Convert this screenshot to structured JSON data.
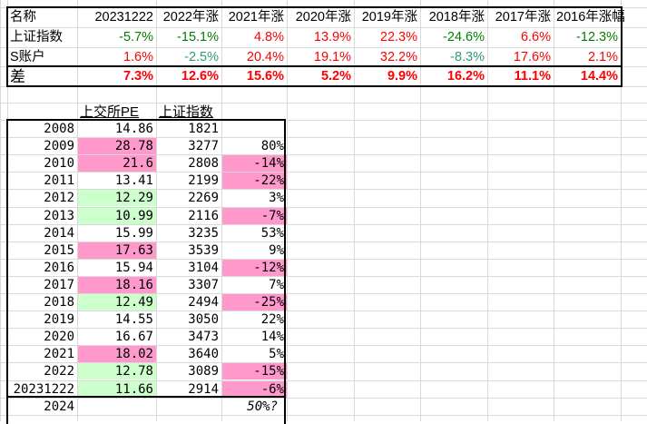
{
  "colors": {
    "red": "#ff0000",
    "green": "#008000",
    "teal": "#2e9e6e",
    "pink": "#ff99cc",
    "lightgreen": "#ccffcc"
  },
  "summary_table": {
    "headers": [
      "名称",
      "20231222",
      "2022年涨",
      "2021年涨",
      "2020年涨",
      "2019年涨",
      "2018年涨",
      "2017年涨",
      "2016年涨幅"
    ],
    "rows": [
      {
        "label": "上证指数",
        "values": [
          "-5.7%",
          "-15.1%",
          "4.8%",
          "13.9%",
          "22.3%",
          "-24.6%",
          "6.6%",
          "-12.3%"
        ],
        "tones": [
          "green",
          "green",
          "red",
          "red",
          "red",
          "green",
          "red",
          "green"
        ]
      },
      {
        "label": "S账户",
        "values": [
          "1.6%",
          "-2.5%",
          "20.4%",
          "19.1%",
          "32.2%",
          "-8.3%",
          "17.6%",
          "2.1%"
        ],
        "tones": [
          "red",
          "teal",
          "red",
          "red",
          "red",
          "teal",
          "red",
          "red"
        ]
      },
      {
        "label": "差",
        "values": [
          "7.3%",
          "12.6%",
          "15.6%",
          "5.2%",
          "9.9%",
          "16.2%",
          "11.1%",
          "14.4%"
        ],
        "tones": [
          "red",
          "red",
          "red",
          "red",
          "red",
          "red",
          "red",
          "red"
        ],
        "bold": true
      }
    ]
  },
  "pe_table": {
    "headers": [
      "上交所PE",
      "上证指数"
    ],
    "rows": [
      {
        "year": "2008",
        "pe": "14.86",
        "index": "1821",
        "change": "",
        "pe_fill": "",
        "change_fill": ""
      },
      {
        "year": "2009",
        "pe": "28.78",
        "index": "3277",
        "change": "80%",
        "pe_fill": "pink",
        "change_fill": ""
      },
      {
        "year": "2010",
        "pe": "21.6",
        "index": "2808",
        "change": "-14%",
        "pe_fill": "pink",
        "change_fill": "pink"
      },
      {
        "year": "2011",
        "pe": "13.41",
        "index": "2199",
        "change": "-22%",
        "pe_fill": "",
        "change_fill": "pink"
      },
      {
        "year": "2012",
        "pe": "12.29",
        "index": "2269",
        "change": "3%",
        "pe_fill": "lightgreen",
        "change_fill": ""
      },
      {
        "year": "2013",
        "pe": "10.99",
        "index": "2116",
        "change": "-7%",
        "pe_fill": "lightgreen",
        "change_fill": "pink"
      },
      {
        "year": "2014",
        "pe": "15.99",
        "index": "3235",
        "change": "53%",
        "pe_fill": "",
        "change_fill": ""
      },
      {
        "year": "2015",
        "pe": "17.63",
        "index": "3539",
        "change": "9%",
        "pe_fill": "pink",
        "change_fill": ""
      },
      {
        "year": "2016",
        "pe": "15.94",
        "index": "3104",
        "change": "-12%",
        "pe_fill": "",
        "change_fill": "pink"
      },
      {
        "year": "2017",
        "pe": "18.16",
        "index": "3307",
        "change": "7%",
        "pe_fill": "pink",
        "change_fill": ""
      },
      {
        "year": "2018",
        "pe": "12.49",
        "index": "2494",
        "change": "-25%",
        "pe_fill": "lightgreen",
        "change_fill": "pink"
      },
      {
        "year": "2019",
        "pe": "14.55",
        "index": "3050",
        "change": "22%",
        "pe_fill": "",
        "change_fill": ""
      },
      {
        "year": "2020",
        "pe": "16.67",
        "index": "3473",
        "change": "14%",
        "pe_fill": "",
        "change_fill": ""
      },
      {
        "year": "2021",
        "pe": "18.02",
        "index": "3640",
        "change": "5%",
        "pe_fill": "pink",
        "change_fill": ""
      },
      {
        "year": "2022",
        "pe": "12.78",
        "index": "3089",
        "change": "-15%",
        "pe_fill": "lightgreen",
        "change_fill": "pink"
      },
      {
        "year": "20231222",
        "pe": "11.66",
        "index": "2914",
        "change": "-6%",
        "pe_fill": "lightgreen",
        "change_fill": "pink"
      }
    ],
    "footer": {
      "year": "2024",
      "change": "50%?"
    }
  }
}
